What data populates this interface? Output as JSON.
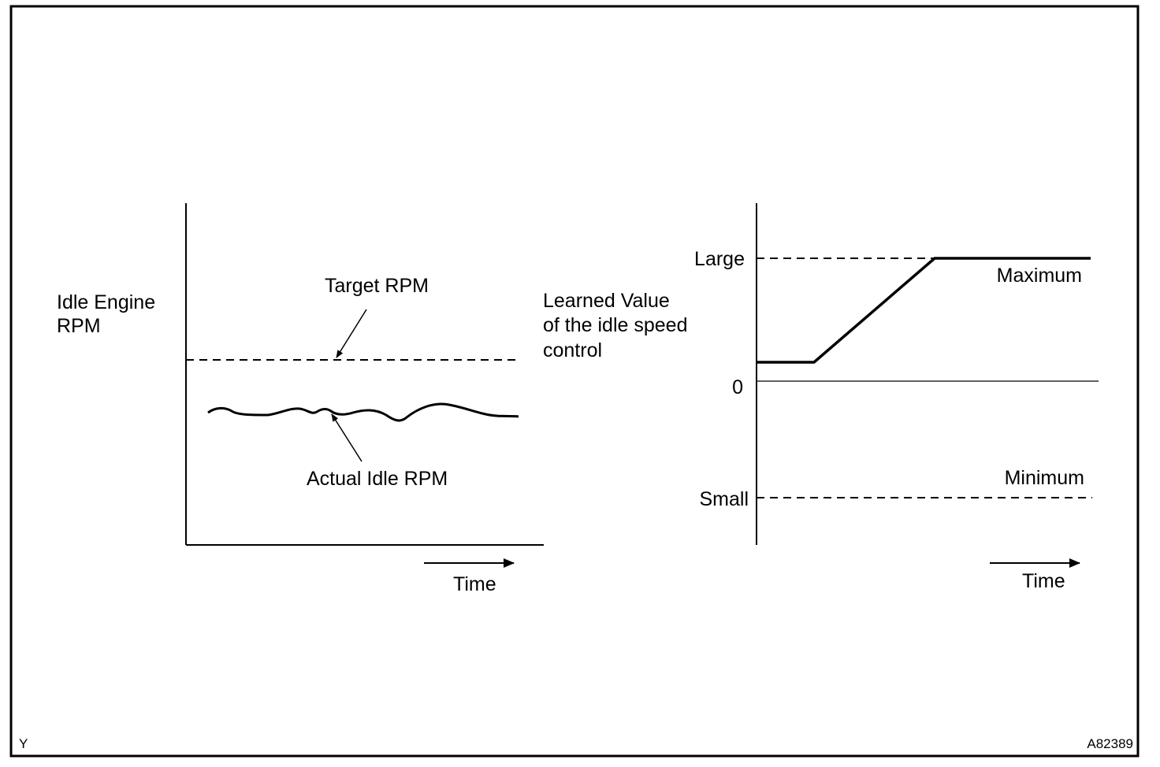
{
  "left_graph": {
    "y_label_line1": "Idle Engine",
    "y_label_line2": "RPM",
    "target_label": "Target RPM",
    "actual_label": "Actual Idle RPM",
    "x_label": "Time"
  },
  "right_graph": {
    "y_label_line1": "Learned Value",
    "y_label_line2": "of the idle speed",
    "y_label_line3": "control",
    "tick_large": "Large",
    "tick_zero": "0",
    "tick_small": "Small",
    "maximum_label": "Maximum",
    "minimum_label": "Minimum",
    "x_label": "Time"
  },
  "corner": {
    "left_code": "Y",
    "figure_id": "A82389"
  }
}
